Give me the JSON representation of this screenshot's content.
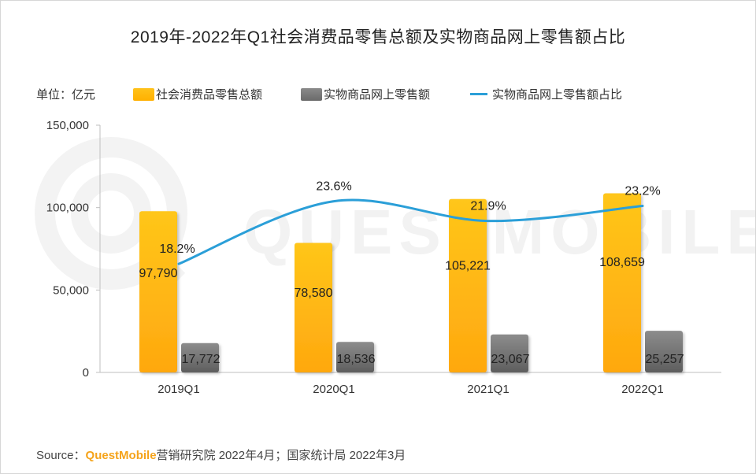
{
  "title": "2019年-2022年Q1社会消费品零售总额及实物商品网上零售额占比",
  "unit_label": "单位：亿元",
  "watermark": "QUESTMOBILE",
  "source": {
    "prefix": "Source：",
    "brand": "QuestMobile",
    "suffix": "营销研究院 2022年4月；国家统计局 2022年3月"
  },
  "colors": {
    "retail_total": "#ffb000",
    "online_retail": "#7a7a7a",
    "online_share": "#2b9fd8"
  },
  "chart_data": {
    "type": "bar",
    "categories": [
      "2019Q1",
      "2020Q1",
      "2021Q1",
      "2022Q1"
    ],
    "ylim": [
      0,
      150000
    ],
    "yticks": [
      "0",
      "50,000",
      "100,000",
      "150,000"
    ],
    "ytick_values": [
      0,
      50000,
      100000,
      150000
    ],
    "grid": false,
    "legend_position": "top",
    "series": [
      {
        "name": "社会消费品零售总额",
        "type": "bar",
        "values": [
          97790,
          78580,
          105221,
          108659
        ],
        "labels": [
          "97,790",
          "78,580",
          "105,221",
          "108,659"
        ]
      },
      {
        "name": "实物商品网上零售额",
        "type": "bar",
        "values": [
          17772,
          18536,
          23067,
          25257
        ],
        "labels": [
          "17,772",
          "18,536",
          "23,067",
          "25,257"
        ]
      },
      {
        "name": "实物商品网上零售额占比",
        "type": "line",
        "values": [
          18.2,
          23.6,
          21.9,
          23.2
        ],
        "labels": [
          "18.2%",
          "23.6%",
          "21.9%",
          "23.2%"
        ]
      }
    ]
  }
}
